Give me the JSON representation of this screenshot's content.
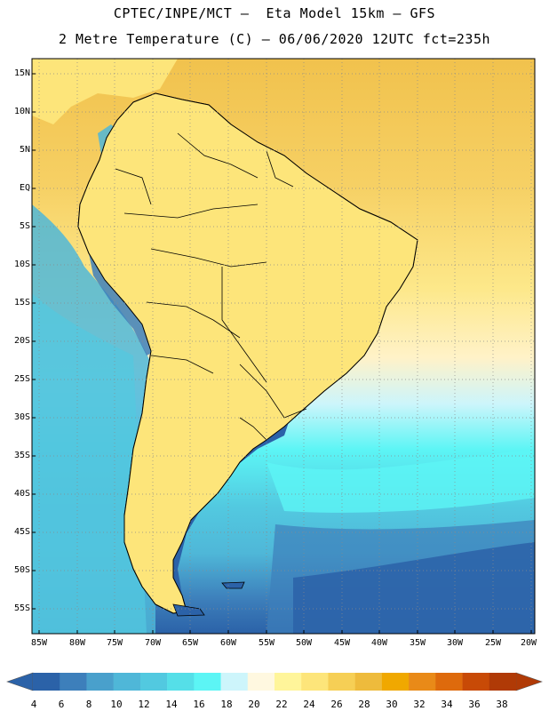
{
  "header": {
    "line1": "CPTEC/INPE/MCT –  Eta Model 15km – GFS",
    "line2": "2 Metre Temperature (C) – 06/06/2020 12UTC fct=235h"
  },
  "lat_labels": [
    "15N",
    "10N",
    "5N",
    "EQ",
    "5S",
    "10S",
    "15S",
    "20S",
    "25S",
    "30S",
    "35S",
    "40S",
    "45S",
    "50S",
    "55S"
  ],
  "lon_labels": [
    "85W",
    "80W",
    "75W",
    "70W",
    "65W",
    "60W",
    "55W",
    "50W",
    "45W",
    "40W",
    "35W",
    "30W",
    "25W",
    "20W"
  ],
  "colorbar": {
    "labels": [
      "4",
      "6",
      "8",
      "10",
      "12",
      "14",
      "16",
      "18",
      "20",
      "22",
      "24",
      "26",
      "28",
      "30",
      "32",
      "34",
      "36",
      "38"
    ],
    "colors": [
      "#2b62a8",
      "#3d7fbb",
      "#49a0cc",
      "#4fb7d8",
      "#52c9e0",
      "#55dfe8",
      "#5cf5f5",
      "#cdf5fb",
      "#fff8e0",
      "#fff59a",
      "#fde57a",
      "#f6cf55",
      "#eebb3c",
      "#f0a800",
      "#e98a18",
      "#de6a0c",
      "#c84a06",
      "#b03a06"
    ],
    "under_color": "#2b62a8",
    "over_color": "#b03a06"
  },
  "map_colors": {
    "ocean_warm": "#f4cc5c",
    "ocean_mid": "#fff59a",
    "ocean_cool": "#cdf5fb",
    "ocean_cold": "#55dfe8",
    "land_base": "#fde57a",
    "andes": "#4fb7d8",
    "patagonia": "#2b62a8"
  }
}
